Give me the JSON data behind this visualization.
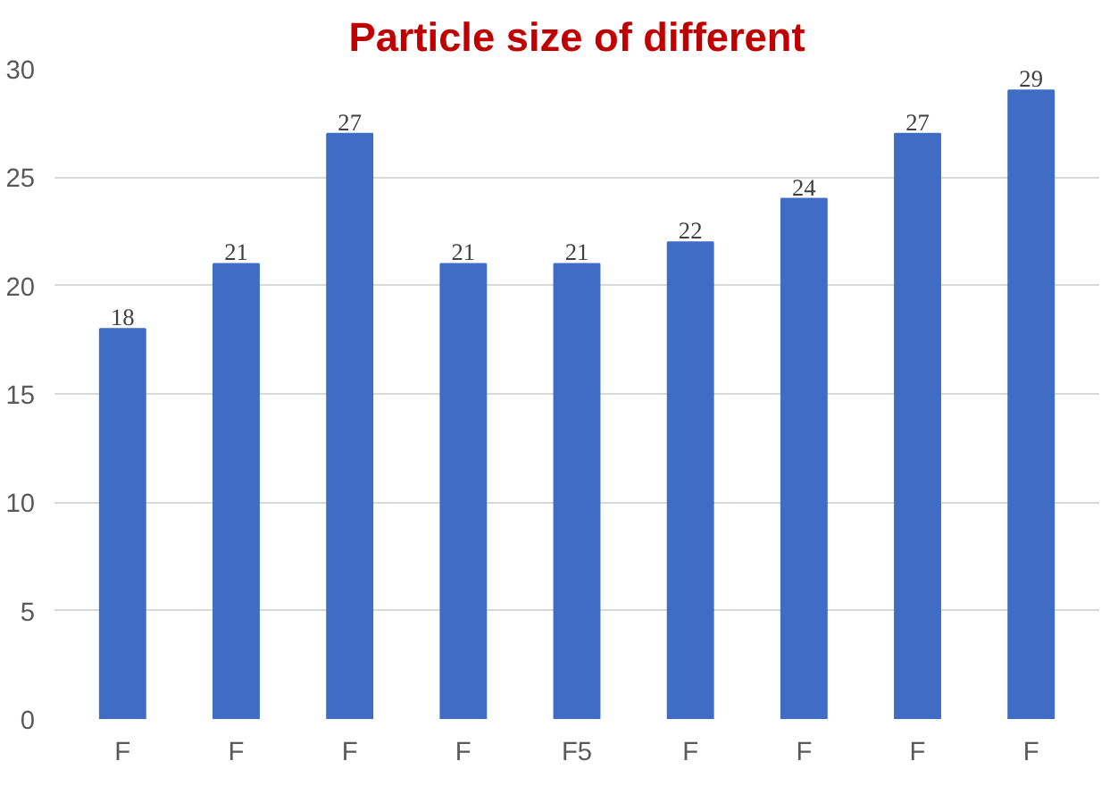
{
  "chart_data": {
    "type": "bar",
    "title": "Particle size of different",
    "categories": [
      "F",
      "F",
      "F",
      "F",
      "F5",
      "F",
      "F",
      "F",
      "F"
    ],
    "values": [
      18,
      21,
      27,
      21,
      21,
      22,
      24,
      27,
      29
    ],
    "color": "#3f6cc4",
    "data_labels": true,
    "ylim": [
      0,
      30
    ],
    "yticks": [
      0,
      5,
      10,
      15,
      20,
      25,
      30
    ],
    "grid": "y"
  }
}
